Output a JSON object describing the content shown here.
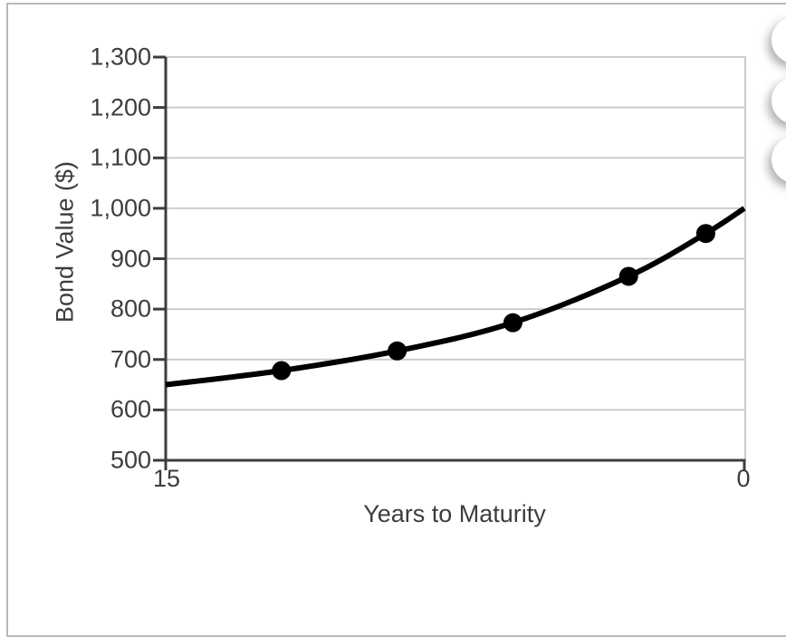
{
  "colors": {
    "background": "#ffffff",
    "card_border": "#b9b9b9",
    "gridline": "#cccccc",
    "axis": "#3d3d3d",
    "curve": "#000000",
    "text": "#3d3d3d"
  },
  "answer_options": {
    "count": 3
  },
  "chart_data": {
    "type": "line",
    "title": "",
    "xlabel": "Years to Maturity",
    "ylabel": "Bond Value ($)",
    "grid": "horizontal-only",
    "legend": false,
    "x_axis": {
      "min": 0,
      "max": 15,
      "direction": "decreasing-left-to-right",
      "tick_values": [
        15,
        0
      ],
      "tick_labels": [
        "15",
        "0"
      ]
    },
    "y_axis": {
      "min": 500,
      "max": 1300,
      "tick_values": [
        500,
        600,
        700,
        800,
        900,
        1000,
        1100,
        1200,
        1300
      ],
      "tick_labels": [
        "500",
        "600",
        "700",
        "800",
        "900",
        "1,000",
        "1,100",
        "1,200",
        "1,300"
      ]
    },
    "series": [
      {
        "name": "Bond value",
        "color": "#000000",
        "line_width": 6,
        "marker_radius": 10.5,
        "points": [
          {
            "years_to_maturity": 15,
            "bond_value": 650,
            "marker": false
          },
          {
            "years_to_maturity": 12,
            "bond_value": 678,
            "marker": true
          },
          {
            "years_to_maturity": 9,
            "bond_value": 717,
            "marker": true
          },
          {
            "years_to_maturity": 6,
            "bond_value": 773,
            "marker": true
          },
          {
            "years_to_maturity": 3,
            "bond_value": 865,
            "marker": true
          },
          {
            "years_to_maturity": 1,
            "bond_value": 950,
            "marker": true
          },
          {
            "years_to_maturity": 0,
            "bond_value": 1000,
            "marker": false
          }
        ]
      }
    ]
  }
}
